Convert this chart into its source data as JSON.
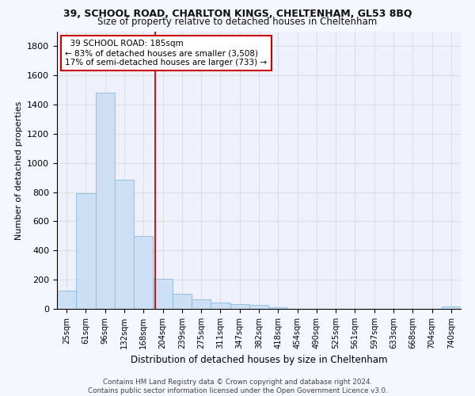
{
  "title1": "39, SCHOOL ROAD, CHARLTON KINGS, CHELTENHAM, GL53 8BQ",
  "title2": "Size of property relative to detached houses in Cheltenham",
  "xlabel": "Distribution of detached houses by size in Cheltenham",
  "ylabel": "Number of detached properties",
  "footer1": "Contains HM Land Registry data © Crown copyright and database right 2024.",
  "footer2": "Contains public sector information licensed under the Open Government Licence v3.0.",
  "bin_labels": [
    "25sqm",
    "61sqm",
    "96sqm",
    "132sqm",
    "168sqm",
    "204sqm",
    "239sqm",
    "275sqm",
    "311sqm",
    "347sqm",
    "382sqm",
    "418sqm",
    "454sqm",
    "490sqm",
    "525sqm",
    "561sqm",
    "597sqm",
    "633sqm",
    "668sqm",
    "704sqm",
    "740sqm"
  ],
  "bar_values": [
    125,
    795,
    1480,
    885,
    500,
    205,
    105,
    65,
    45,
    35,
    27,
    10,
    0,
    0,
    0,
    0,
    0,
    0,
    0,
    0,
    15
  ],
  "bar_color": "#ccdff5",
  "bar_edgecolor": "#88bbdd",
  "grid_color": "#dddddd",
  "vline_x": 4.62,
  "vline_color": "#cc0000",
  "annotation_text": "  39 SCHOOL ROAD: 185sqm\n← 83% of detached houses are smaller (3,508)\n17% of semi-detached houses are larger (733) →",
  "annotation_box_edgecolor": "#cc0000",
  "ylim": [
    0,
    1900
  ],
  "yticks": [
    0,
    200,
    400,
    600,
    800,
    1000,
    1200,
    1400,
    1600,
    1800
  ],
  "background_color": "#f5f7ff",
  "plot_bg_color": "#eef1fb"
}
